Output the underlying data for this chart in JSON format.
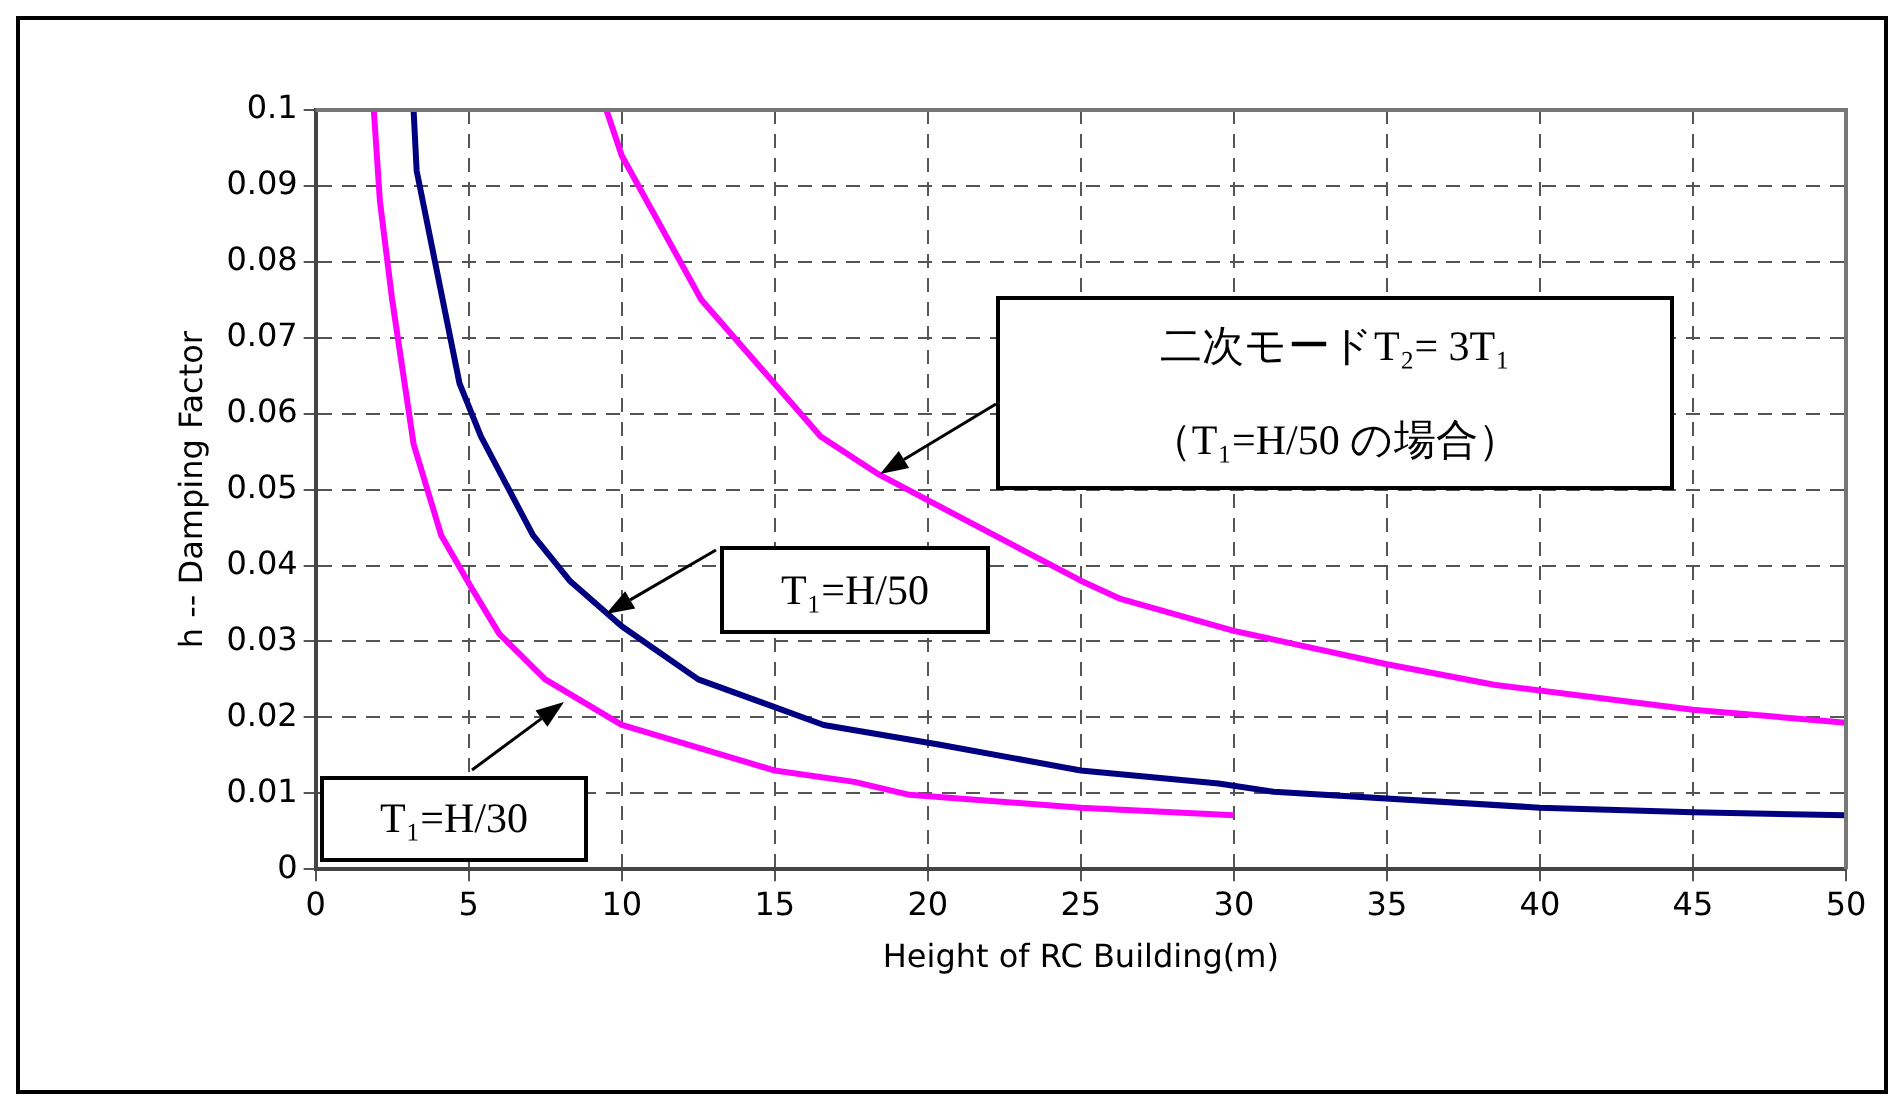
{
  "chart_data": {
    "type": "line",
    "xlabel": "Height of RC Building(m)",
    "ylabel": "h -- Damping Factor",
    "xlim": [
      0,
      50
    ],
    "xticks": [
      0,
      5,
      10,
      15,
      20,
      25,
      30,
      35,
      40,
      45,
      50
    ],
    "ylim": [
      0,
      0.1
    ],
    "yticks": [
      0,
      0.01,
      0.02,
      0.03,
      0.04,
      0.05,
      0.06,
      0.07,
      0.08,
      0.09,
      0.1
    ],
    "grid": true,
    "legend": false,
    "marker": "none",
    "line_style": "solid",
    "series": [
      {
        "color": "#ff00ff",
        "x": [
          1.9,
          2.1,
          2.5,
          3.2,
          4.1,
          5.1,
          6,
          7.5,
          10,
          15,
          17.6,
          19.4,
          25,
          30
        ],
        "values": [
          0.1,
          0.088,
          0.075,
          0.056,
          0.044,
          0.037,
          0.031,
          0.025,
          0.019,
          0.013,
          0.0115,
          0.0098,
          0.0081,
          0.0071
        ]
      },
      {
        "color": "#000080",
        "x": [
          3.2,
          3.3,
          3.9,
          4.7,
          5.4,
          7.1,
          8.3,
          10,
          12.5,
          16.6,
          20.4,
          25,
          29.5,
          31.3,
          40,
          45,
          50
        ],
        "values": [
          0.1,
          0.092,
          0.08,
          0.064,
          0.057,
          0.044,
          0.038,
          0.032,
          0.025,
          0.019,
          0.0164,
          0.013,
          0.0113,
          0.0102,
          0.0081,
          0.0075,
          0.0071
        ]
      },
      {
        "color": "#ff00ff",
        "x": [
          9.5,
          10,
          12.6,
          16.5,
          18.4,
          25,
          26.3,
          30,
          35,
          38.5,
          45,
          50
        ],
        "values": [
          0.1,
          0.094,
          0.075,
          0.057,
          0.052,
          0.038,
          0.0356,
          0.0314,
          0.027,
          0.0243,
          0.021,
          0.0193
        ]
      }
    ],
    "annotations": [
      "T₁=H/30",
      "T₁=H/50",
      "二次モードT₂= 3T₁\n（T₁=H/50 の場合）"
    ]
  }
}
